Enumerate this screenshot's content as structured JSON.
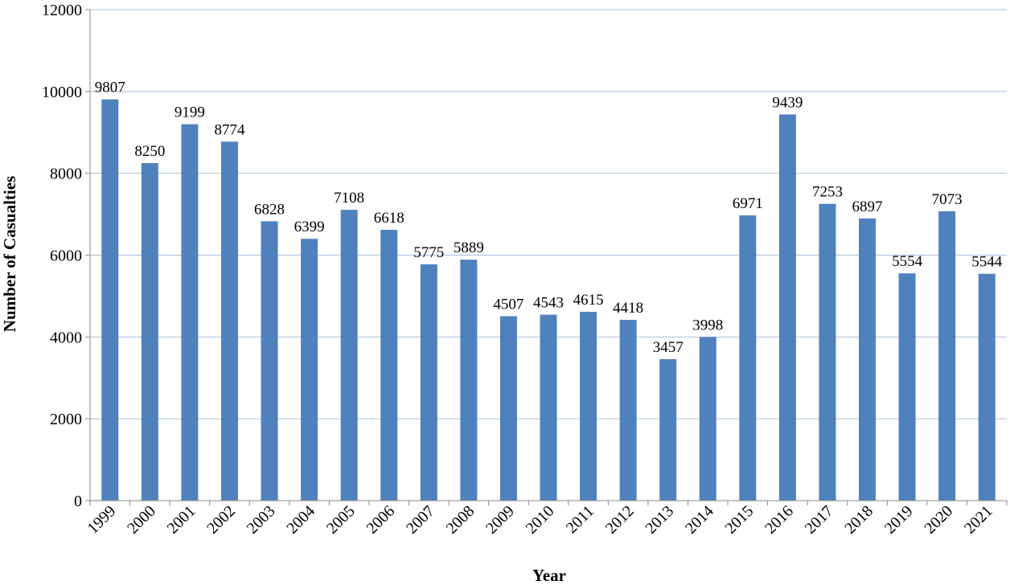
{
  "chart_data": {
    "type": "bar",
    "title": "",
    "xlabel": "Year",
    "ylabel": "Number of Casualties",
    "ylim": [
      0,
      12000
    ],
    "yticks": [
      0,
      2000,
      4000,
      6000,
      8000,
      10000,
      12000
    ],
    "grid": true,
    "legend": "none",
    "bar_color": "#4f81bd",
    "grid_color": "#a7bfdc",
    "categories": [
      "1999",
      "2000",
      "2001",
      "2002",
      "2003",
      "2004",
      "2005",
      "2006",
      "2007",
      "2008",
      "2009",
      "2010",
      "2011",
      "2012",
      "2013",
      "2014",
      "2015",
      "2016",
      "2017",
      "2018",
      "2019",
      "2020",
      "2021"
    ],
    "values": [
      9807,
      8250,
      9199,
      8774,
      6828,
      6399,
      7108,
      6618,
      5775,
      5889,
      4507,
      4543,
      4615,
      4418,
      3457,
      3998,
      6971,
      9439,
      7253,
      6897,
      5554,
      7073,
      5544
    ],
    "value_labels": [
      "9807",
      "8250",
      "9199",
      "8774",
      "6828",
      "6399",
      "7108",
      "6618",
      "5775",
      "5889",
      "4507",
      "4543",
      "4615",
      "4418",
      "3457",
      "3998",
      "6971",
      "9439",
      "7253",
      "6897",
      "5554",
      "7073",
      "5544"
    ]
  }
}
